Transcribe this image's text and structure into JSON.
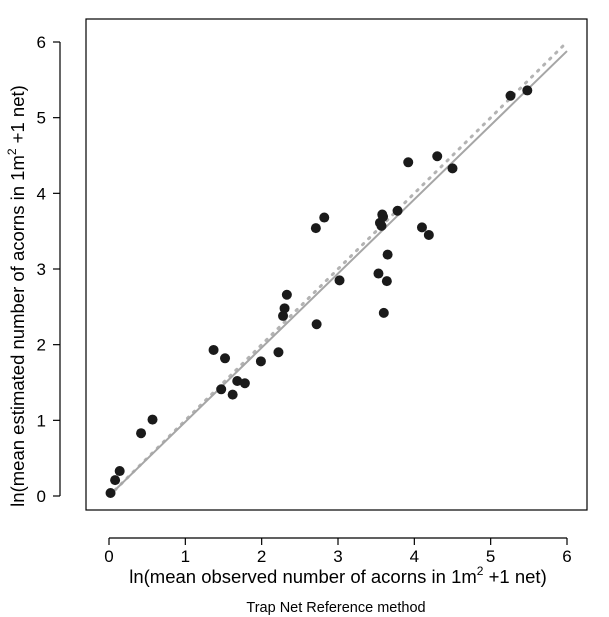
{
  "chart_data": {
    "type": "scatter",
    "xlabel": "ln(mean observed number of acorns in 1m",
    "xlabel_sup": "2",
    "xlabel_tail": " +1 net)",
    "ylabel": "ln(mean estimated number of acorns in 1m",
    "ylabel_sup": "2",
    "ylabel_tail": " +1 net)",
    "subtitle": "Trap Net Reference method",
    "xlim": [
      0,
      6
    ],
    "ylim": [
      0,
      6
    ],
    "x_ticks": [
      "0",
      "1",
      "2",
      "3",
      "4",
      "5",
      "6"
    ],
    "y_ticks": [
      "0",
      "1",
      "2",
      "3",
      "4",
      "5",
      "6"
    ],
    "grid": false,
    "series": [
      {
        "points": [
          [
            0.02,
            0.04
          ],
          [
            0.08,
            0.21
          ],
          [
            0.14,
            0.33
          ],
          [
            0.42,
            0.83
          ],
          [
            0.57,
            1.01
          ],
          [
            1.37,
            1.93
          ],
          [
            1.47,
            1.41
          ],
          [
            1.52,
            1.82
          ],
          [
            1.62,
            1.34
          ],
          [
            1.68,
            1.52
          ],
          [
            1.78,
            1.49
          ],
          [
            1.99,
            1.78
          ],
          [
            2.22,
            1.9
          ],
          [
            2.28,
            2.38
          ],
          [
            2.3,
            2.48
          ],
          [
            2.33,
            2.66
          ],
          [
            2.71,
            3.54
          ],
          [
            2.72,
            2.27
          ],
          [
            2.82,
            3.68
          ],
          [
            3.02,
            2.85
          ],
          [
            3.53,
            2.94
          ],
          [
            3.55,
            3.61
          ],
          [
            3.57,
            3.57
          ],
          [
            3.58,
            3.72
          ],
          [
            3.59,
            3.69
          ],
          [
            3.6,
            2.42
          ],
          [
            3.64,
            2.84
          ],
          [
            3.65,
            3.19
          ],
          [
            3.78,
            3.77
          ],
          [
            3.92,
            4.41
          ],
          [
            4.1,
            3.55
          ],
          [
            4.19,
            3.45
          ],
          [
            4.3,
            4.49
          ],
          [
            4.5,
            4.33
          ],
          [
            5.26,
            5.29
          ],
          [
            5.48,
            5.36
          ]
        ]
      }
    ],
    "fit_line": {
      "x": [
        0.0,
        6.0
      ],
      "y": [
        0.0,
        5.88
      ]
    },
    "identity_line": {
      "x": [
        0.0,
        6.0
      ],
      "y": [
        0.0,
        6.0
      ]
    },
    "colors": {
      "points": "#1a1a1a",
      "fit_line": "#a6a6a6",
      "identity_line": "#b3b3b3",
      "axes": "#000000"
    }
  }
}
